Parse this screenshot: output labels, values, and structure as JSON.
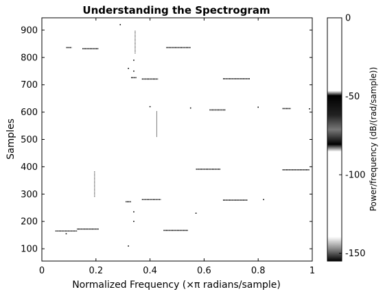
{
  "chart_data": {
    "type": "heatmap",
    "title": "Understanding the Spectrogram",
    "xlabel": "Normalized Frequency (×π radians/sample)",
    "ylabel": "Samples",
    "xlim": [
      0,
      1
    ],
    "ylim": [
      55,
      945
    ],
    "xticks": [
      0,
      0.2,
      0.4,
      0.6,
      0.8,
      1
    ],
    "xtick_labels": [
      "0",
      "0.2",
      "0.4",
      "0.6",
      "0.8",
      "1"
    ],
    "yticks": [
      100,
      200,
      300,
      400,
      500,
      600,
      700,
      800,
      900
    ],
    "ytick_labels": [
      "100",
      "200",
      "300",
      "400",
      "500",
      "600",
      "700",
      "800",
      "900"
    ],
    "background_color": "#ffffff",
    "mark_color": "#000000",
    "colorbar": {
      "label": "Power/frequency (dB/(rad/sample))",
      "range": [
        -155,
        0
      ],
      "ticks": [
        0,
        -50,
        -100,
        -150
      ],
      "tick_labels": [
        "0",
        "-50",
        "-100",
        "-150"
      ]
    },
    "segments": [
      {
        "x0": 0.09,
        "x1": 0.11,
        "y": 836
      },
      {
        "x0": 0.15,
        "x1": 0.21,
        "y": 832
      },
      {
        "x0": 0.46,
        "x1": 0.55,
        "y": 836
      },
      {
        "x0": 0.33,
        "x1": 0.35,
        "y": 726
      },
      {
        "x0": 0.37,
        "x1": 0.43,
        "y": 721
      },
      {
        "x0": 0.67,
        "x1": 0.77,
        "y": 722
      },
      {
        "x0": 0.62,
        "x1": 0.68,
        "y": 608
      },
      {
        "x0": 0.89,
        "x1": 0.92,
        "y": 613
      },
      {
        "x0": 0.57,
        "x1": 0.66,
        "y": 391
      },
      {
        "x0": 0.89,
        "x1": 0.99,
        "y": 389
      },
      {
        "x0": 0.37,
        "x1": 0.44,
        "y": 280
      },
      {
        "x0": 0.67,
        "x1": 0.76,
        "y": 278
      },
      {
        "x0": 0.31,
        "x1": 0.33,
        "y": 272
      },
      {
        "x0": 0.05,
        "x1": 0.13,
        "y": 165
      },
      {
        "x0": 0.13,
        "x1": 0.21,
        "y": 172
      },
      {
        "x0": 0.45,
        "x1": 0.54,
        "y": 167
      }
    ],
    "vertical_lines": [
      {
        "x": 0.195,
        "y0": 290,
        "y1": 385
      },
      {
        "x": 0.425,
        "y0": 510,
        "y1": 605
      },
      {
        "x": 0.345,
        "y0": 815,
        "y1": 900
      }
    ],
    "specks": [
      {
        "x": 0.55,
        "y": 615
      },
      {
        "x": 0.8,
        "y": 618
      },
      {
        "x": 0.99,
        "y": 612
      },
      {
        "x": 0.32,
        "y": 110
      },
      {
        "x": 0.34,
        "y": 200
      },
      {
        "x": 0.34,
        "y": 235
      },
      {
        "x": 0.32,
        "y": 760
      },
      {
        "x": 0.34,
        "y": 750
      },
      {
        "x": 0.34,
        "y": 790
      },
      {
        "x": 0.82,
        "y": 280
      },
      {
        "x": 0.09,
        "y": 155
      },
      {
        "x": 0.4,
        "y": 620
      },
      {
        "x": 0.57,
        "y": 230
      },
      {
        "x": 0.29,
        "y": 920
      }
    ]
  }
}
